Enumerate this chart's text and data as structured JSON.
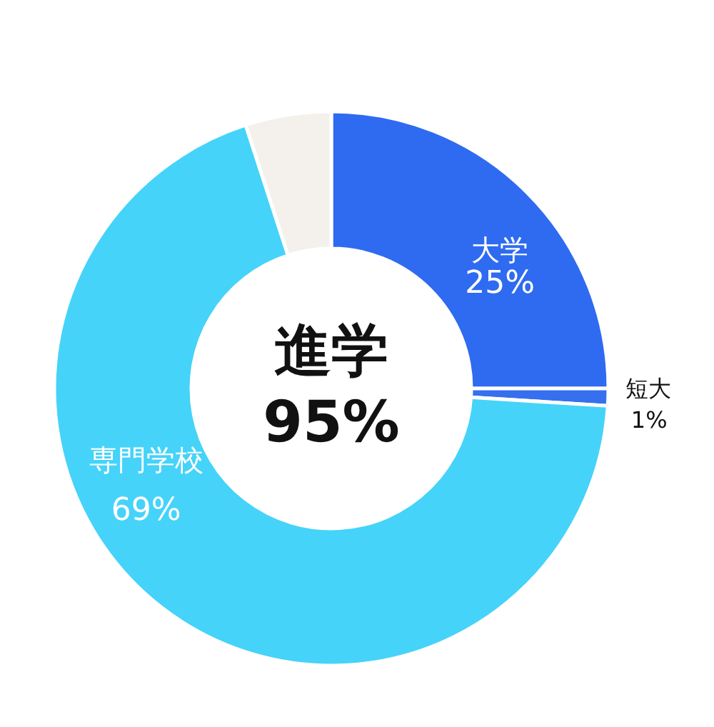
{
  "chart_data": {
    "type": "donut",
    "categories": [
      "大学",
      "短大",
      "専門学校",
      null
    ],
    "values": [
      25,
      1,
      69,
      5
    ],
    "colors": [
      "#2f6bf0",
      "#3670ee",
      "#45d3f9",
      "#f4f0eb"
    ],
    "value_labels": [
      "25%",
      "1%",
      "69%",
      null
    ],
    "annotations": [
      "進学",
      "95%"
    ]
  }
}
